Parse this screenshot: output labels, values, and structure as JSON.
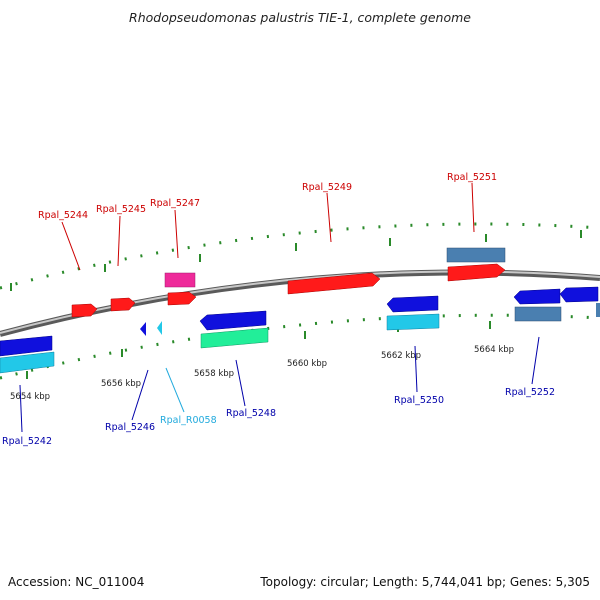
{
  "title": "Rhodopseudomonas palustris TIE-1, complete genome",
  "footer": {
    "accession": "Accession: NC_011004",
    "summary": "Topology: circular; Length: 5,744,041 bp; Genes: 5,305"
  },
  "colors": {
    "forward_cds": "#ff1a1a",
    "forward_pink": "#ee2a9a",
    "forward_steel": "#4a7fb0",
    "reverse_cds": "#1010dd",
    "reverse_cyan": "#22c8e8",
    "reverse_mint": "#22ee99",
    "reverse_steel": "#4a7fb0",
    "backbone": "#808080",
    "ticks": "#2a8a2a",
    "label_forward": "#cc0000",
    "label_reverse": "#0000aa",
    "label_rna": "#22aadd"
  },
  "scale_ticks": [
    "5654 kbp",
    "5656 kbp",
    "5658 kbp",
    "5660 kbp",
    "5662 kbp",
    "5664 kbp"
  ],
  "forward_labels": [
    "Rpal_5244",
    "Rpal_5245",
    "Rpal_5247",
    "Rpal_5249",
    "Rpal_5251"
  ],
  "reverse_labels": [
    "Rpal_5242",
    "Rpal_5246",
    "Rpal_R0058",
    "Rpal_5248",
    "Rpal_5250",
    "Rpal_5252"
  ]
}
